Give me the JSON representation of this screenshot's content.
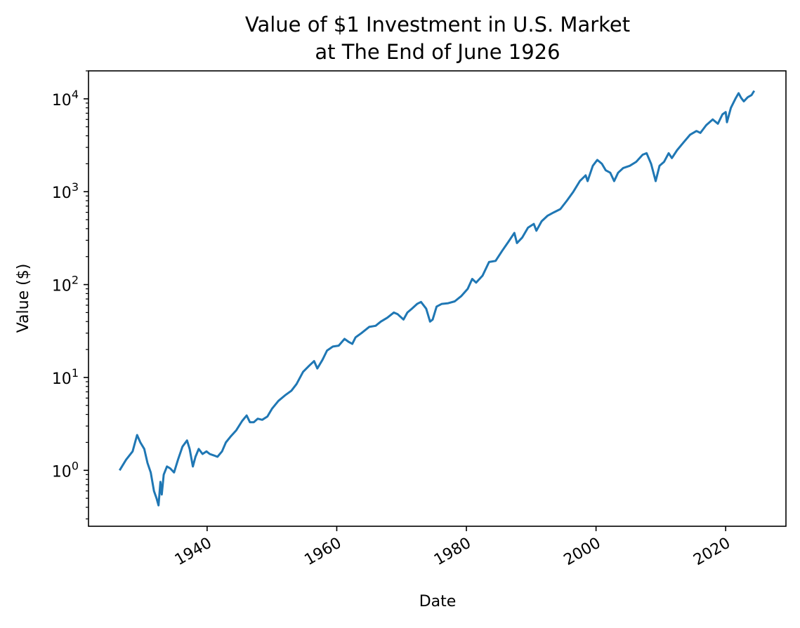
{
  "chart_data": {
    "type": "line",
    "title": [
      "Value of $1 Investment in U.S. Market",
      "at The End of June 1926"
    ],
    "xlabel": "Date",
    "ylabel": "Value ($)",
    "yscale": "log",
    "ylim": [
      0.25,
      20000
    ],
    "xlim": [
      1921.7,
      2029.3
    ],
    "grid": false,
    "legend": "none",
    "line_color": "#1f77b4",
    "x_ticks": [
      {
        "value": 1940,
        "label": "1940"
      },
      {
        "value": 1960,
        "label": "1960"
      },
      {
        "value": 1980,
        "label": "1980"
      },
      {
        "value": 2000,
        "label": "2000"
      },
      {
        "value": 2020,
        "label": "2020"
      }
    ],
    "y_ticks": [
      {
        "value": 1,
        "base": "10",
        "exp": "0"
      },
      {
        "value": 10,
        "base": "10",
        "exp": "1"
      },
      {
        "value": 100,
        "base": "10",
        "exp": "2"
      },
      {
        "value": 1000,
        "base": "10",
        "exp": "3"
      },
      {
        "value": 10000,
        "base": "10",
        "exp": "4"
      }
    ],
    "series": [
      {
        "x": [
          1926.5,
          1927.5,
          1928.5,
          1929.2,
          1929.7,
          1930.3,
          1930.8,
          1931.3,
          1931.8,
          1932.2,
          1932.5,
          1932.8,
          1933.0,
          1933.3,
          1933.8,
          1934.3,
          1934.9,
          1935.5,
          1936.2,
          1936.9,
          1937.3,
          1937.8,
          1938.2,
          1938.7,
          1939.3,
          1939.9,
          1940.4,
          1941.0,
          1941.6,
          1942.3,
          1942.9,
          1943.6,
          1944.5,
          1945.4,
          1946.1,
          1946.6,
          1947.2,
          1947.8,
          1948.5,
          1949.3,
          1950.0,
          1951.0,
          1952.0,
          1953.0,
          1953.8,
          1954.8,
          1955.8,
          1956.5,
          1957.0,
          1957.8,
          1958.5,
          1959.4,
          1960.3,
          1961.2,
          1961.9,
          1962.4,
          1962.9,
          1963.8,
          1965.0,
          1966.0,
          1966.8,
          1967.8,
          1968.8,
          1969.4,
          1970.3,
          1970.9,
          1971.6,
          1972.4,
          1973.0,
          1973.8,
          1974.4,
          1974.8,
          1975.4,
          1976.2,
          1977.2,
          1978.2,
          1979.2,
          1980.2,
          1980.9,
          1981.5,
          1982.5,
          1983.5,
          1984.5,
          1985.5,
          1986.5,
          1987.4,
          1987.8,
          1988.6,
          1989.5,
          1990.4,
          1990.8,
          1991.6,
          1992.5,
          1993.5,
          1994.5,
          1995.5,
          1996.5,
          1997.5,
          1998.4,
          1998.7,
          1999.5,
          2000.2,
          2000.9,
          2001.5,
          2002.2,
          2002.8,
          2003.4,
          2004.2,
          2005.2,
          2006.2,
          2007.2,
          2007.8,
          2008.5,
          2009.2,
          2009.8,
          2010.5,
          2011.2,
          2011.7,
          2012.5,
          2013.5,
          2014.5,
          2015.5,
          2016.1,
          2017.0,
          2018.0,
          2018.8,
          2019.5,
          2020.0,
          2020.2,
          2020.8,
          2021.5,
          2022.0,
          2022.4,
          2022.8,
          2023.4,
          2024.0,
          2024.4
        ],
        "y": [
          1.0,
          1.3,
          1.6,
          2.4,
          2.0,
          1.7,
          1.2,
          0.95,
          0.6,
          0.5,
          0.42,
          0.75,
          0.55,
          0.9,
          1.1,
          1.05,
          0.95,
          1.3,
          1.8,
          2.1,
          1.7,
          1.1,
          1.4,
          1.7,
          1.5,
          1.6,
          1.5,
          1.45,
          1.4,
          1.6,
          2.0,
          2.3,
          2.7,
          3.4,
          3.9,
          3.3,
          3.3,
          3.6,
          3.5,
          3.8,
          4.6,
          5.6,
          6.4,
          7.2,
          8.5,
          11.5,
          13.5,
          15.0,
          12.5,
          15.5,
          19.5,
          21.5,
          22.0,
          26.0,
          24.0,
          23.0,
          27.0,
          30.0,
          35.0,
          36.0,
          40.0,
          44.0,
          50.0,
          48.0,
          42.0,
          50.0,
          55.0,
          62.0,
          65.0,
          55.0,
          40.0,
          42.0,
          58.0,
          62.0,
          63.0,
          66.0,
          75.0,
          90.0,
          115.0,
          105.0,
          125.0,
          175.0,
          180.0,
          230.0,
          290.0,
          360.0,
          280.0,
          320.0,
          410.0,
          450.0,
          380.0,
          480.0,
          550.0,
          600.0,
          650.0,
          800.0,
          1000.0,
          1300.0,
          1500.0,
          1300.0,
          1900.0,
          2200.0,
          2000.0,
          1700.0,
          1600.0,
          1300.0,
          1600.0,
          1800.0,
          1900.0,
          2100.0,
          2500.0,
          2600.0,
          2000.0,
          1300.0,
          1900.0,
          2100.0,
          2600.0,
          2300.0,
          2800.0,
          3400.0,
          4100.0,
          4500.0,
          4300.0,
          5200.0,
          6000.0,
          5400.0,
          6800.0,
          7200.0,
          5600.0,
          8000.0,
          10000.0,
          11500.0,
          10200.0,
          9400.0,
          10400.0,
          11000.0,
          12200.0
        ]
      }
    ]
  }
}
